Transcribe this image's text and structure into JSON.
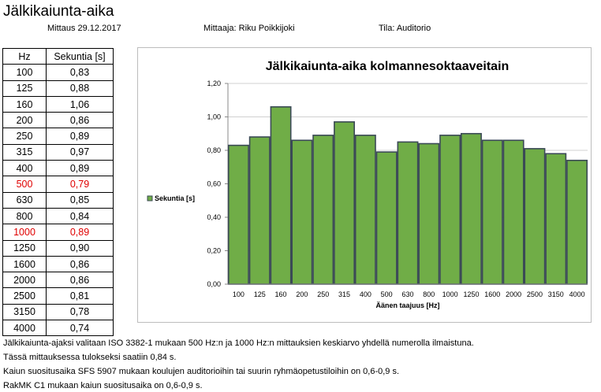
{
  "header": {
    "title": "Jälkikaiunta-aika",
    "date": "Mittaus 29.12.2017",
    "measurer": "Mittaaja: Riku Poikkijoki",
    "room": "Tila: Auditorio"
  },
  "table": {
    "col_hz": "Hz",
    "col_sec": "Sekuntia [s]",
    "rows": [
      {
        "hz": "100",
        "sec": "0,83",
        "highlight": false
      },
      {
        "hz": "125",
        "sec": "0,88",
        "highlight": false
      },
      {
        "hz": "160",
        "sec": "1,06",
        "highlight": false
      },
      {
        "hz": "200",
        "sec": "0,86",
        "highlight": false
      },
      {
        "hz": "250",
        "sec": "0,89",
        "highlight": false
      },
      {
        "hz": "315",
        "sec": "0,97",
        "highlight": false
      },
      {
        "hz": "400",
        "sec": "0,89",
        "highlight": false
      },
      {
        "hz": "500",
        "sec": "0,79",
        "highlight": true
      },
      {
        "hz": "630",
        "sec": "0,85",
        "highlight": false
      },
      {
        "hz": "800",
        "sec": "0,84",
        "highlight": false
      },
      {
        "hz": "1000",
        "sec": "0,89",
        "highlight": true
      },
      {
        "hz": "1250",
        "sec": "0,90",
        "highlight": false
      },
      {
        "hz": "1600",
        "sec": "0,86",
        "highlight": false
      },
      {
        "hz": "2000",
        "sec": "0,86",
        "highlight": false
      },
      {
        "hz": "2500",
        "sec": "0,81",
        "highlight": false
      },
      {
        "hz": "3150",
        "sec": "0,78",
        "highlight": false
      },
      {
        "hz": "4000",
        "sec": "0,74",
        "highlight": false
      }
    ],
    "highlight_color": "#e00000"
  },
  "chart_data": {
    "type": "bar",
    "title": "Jälkikaiunta-aika kolmannesoktaaveitain",
    "xlabel": "Äänen taajuus [Hz]",
    "ylabel": "",
    "categories": [
      "100",
      "125",
      "160",
      "200",
      "250",
      "315",
      "400",
      "500",
      "630",
      "800",
      "1000",
      "1250",
      "1600",
      "2000",
      "2500",
      "3150",
      "4000"
    ],
    "series": [
      {
        "name": "Sekuntia [s]",
        "values": [
          0.83,
          0.88,
          1.06,
          0.86,
          0.89,
          0.97,
          0.89,
          0.79,
          0.85,
          0.84,
          0.89,
          0.9,
          0.86,
          0.86,
          0.81,
          0.78,
          0.74
        ]
      }
    ],
    "ylim": [
      0,
      1.2
    ],
    "yticks": [
      "0,00",
      "0,20",
      "0,40",
      "0,60",
      "0,80",
      "1,00",
      "1,20"
    ],
    "grid": true,
    "legend": "left",
    "bar_color": "#70ad47",
    "bar_edge_color": "#3b4a56"
  },
  "notes": [
    "Jälkikaiunta-ajaksi valitaan ISO 3382-1 mukaan 500 Hz:n ja 1000 Hz:n mittauksien keskiarvo yhdellä numerolla ilmaistuna.",
    "Tässä mittauksessa tulokseksi saatiin  0,84 s.",
    "Kaiun suositusaika SFS 5907 mukaan koulujen auditorioihin tai suurin ryhmäopetustiloihin on 0,6-0,9 s.",
    "RakMK C1 mukaan kaiun suositusaika on 0,6-0,9  s."
  ]
}
